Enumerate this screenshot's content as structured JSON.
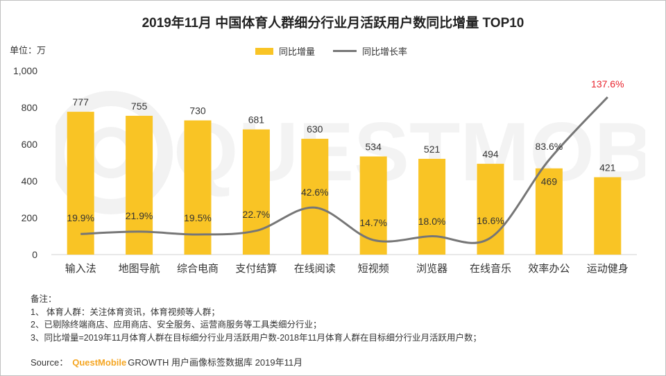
{
  "chart_data": {
    "type": "bar+line",
    "title": "2019年11月 中国体育人群细分行业月活跃用户数同比增量 TOP10",
    "unit_label": "单位：万",
    "categories": [
      "输入法",
      "地图导航",
      "综合电商",
      "支付结算",
      "在线阅读",
      "短视频",
      "浏览器",
      "在线音乐",
      "效率办公",
      "运动健身"
    ],
    "series": [
      {
        "name": "同比增量",
        "type": "bar",
        "values": [
          777,
          755,
          730,
          681,
          630,
          534,
          521,
          494,
          469,
          421
        ],
        "labels": [
          "777",
          "755",
          "730",
          "681",
          "630",
          "534",
          "521",
          "494",
          "469",
          "421"
        ]
      },
      {
        "name": "同比增长率",
        "type": "line",
        "values": [
          19.9,
          21.9,
          19.5,
          22.7,
          42.6,
          14.7,
          18.0,
          16.6,
          83.6,
          137.6
        ],
        "labels": [
          "19.9%",
          "21.9%",
          "19.5%",
          "22.7%",
          "42.6%",
          "14.7%",
          "18.0%",
          "16.6%",
          "83.6%",
          "137.6%"
        ]
      }
    ],
    "ylim": [
      0,
      1000
    ],
    "yticks": [
      0,
      200,
      400,
      600,
      800,
      1000
    ],
    "ytick_labels": [
      "0",
      "200",
      "400",
      "600",
      "800",
      "1,000"
    ],
    "line_scale_note": "secondary axis hidden",
    "legend_position": "top-center"
  },
  "colors": {
    "bar": "#F9C425",
    "line": "#767676",
    "highlight": "#E8212B",
    "brand": "#F5A623"
  },
  "notes": {
    "heading": "备注：",
    "lines": [
      "1、 体育人群：关注体育资讯，体育视频等人群；",
      "2、已剔除终端商店、应用商店、安全服务、运营商服务等工具类细分行业；",
      "3、同比增量=2019年11月体育人群在目标细分行业月活跃用户数-2018年11月体育人群在目标细分行业月活跃用户数；"
    ]
  },
  "source": {
    "prefix": "Source：",
    "brand": "QuestMobile",
    "text": "GROWTH 用户画像标签数据库  2019年11月"
  },
  "watermark": "QUESTMOBILE"
}
